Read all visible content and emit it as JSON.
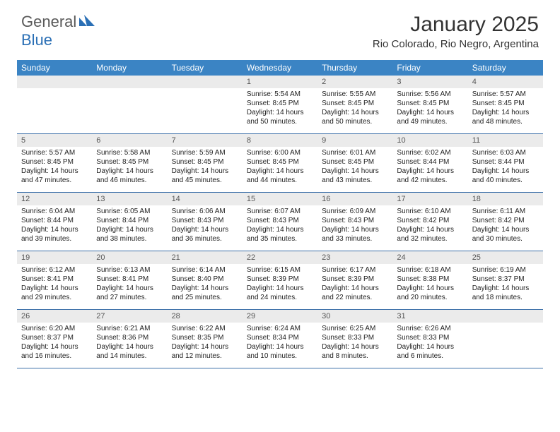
{
  "header": {
    "logo_general": "General",
    "logo_blue": "Blue",
    "month_title": "January 2025",
    "location": "Rio Colorado, Rio Negro, Argentina"
  },
  "colors": {
    "header_bg": "#3b84c4",
    "row_border": "#3b6fa8",
    "daybar_bg": "#ebebeb",
    "logo_blue": "#2a6fb5",
    "text": "#333333"
  },
  "day_names": [
    "Sunday",
    "Monday",
    "Tuesday",
    "Wednesday",
    "Thursday",
    "Friday",
    "Saturday"
  ],
  "weeks": [
    [
      {
        "blank": true
      },
      {
        "blank": true
      },
      {
        "blank": true
      },
      {
        "num": "1",
        "sunrise": "Sunrise: 5:54 AM",
        "sunset": "Sunset: 8:45 PM",
        "day1": "Daylight: 14 hours",
        "day2": "and 50 minutes."
      },
      {
        "num": "2",
        "sunrise": "Sunrise: 5:55 AM",
        "sunset": "Sunset: 8:45 PM",
        "day1": "Daylight: 14 hours",
        "day2": "and 50 minutes."
      },
      {
        "num": "3",
        "sunrise": "Sunrise: 5:56 AM",
        "sunset": "Sunset: 8:45 PM",
        "day1": "Daylight: 14 hours",
        "day2": "and 49 minutes."
      },
      {
        "num": "4",
        "sunrise": "Sunrise: 5:57 AM",
        "sunset": "Sunset: 8:45 PM",
        "day1": "Daylight: 14 hours",
        "day2": "and 48 minutes."
      }
    ],
    [
      {
        "num": "5",
        "sunrise": "Sunrise: 5:57 AM",
        "sunset": "Sunset: 8:45 PM",
        "day1": "Daylight: 14 hours",
        "day2": "and 47 minutes."
      },
      {
        "num": "6",
        "sunrise": "Sunrise: 5:58 AM",
        "sunset": "Sunset: 8:45 PM",
        "day1": "Daylight: 14 hours",
        "day2": "and 46 minutes."
      },
      {
        "num": "7",
        "sunrise": "Sunrise: 5:59 AM",
        "sunset": "Sunset: 8:45 PM",
        "day1": "Daylight: 14 hours",
        "day2": "and 45 minutes."
      },
      {
        "num": "8",
        "sunrise": "Sunrise: 6:00 AM",
        "sunset": "Sunset: 8:45 PM",
        "day1": "Daylight: 14 hours",
        "day2": "and 44 minutes."
      },
      {
        "num": "9",
        "sunrise": "Sunrise: 6:01 AM",
        "sunset": "Sunset: 8:45 PM",
        "day1": "Daylight: 14 hours",
        "day2": "and 43 minutes."
      },
      {
        "num": "10",
        "sunrise": "Sunrise: 6:02 AM",
        "sunset": "Sunset: 8:44 PM",
        "day1": "Daylight: 14 hours",
        "day2": "and 42 minutes."
      },
      {
        "num": "11",
        "sunrise": "Sunrise: 6:03 AM",
        "sunset": "Sunset: 8:44 PM",
        "day1": "Daylight: 14 hours",
        "day2": "and 40 minutes."
      }
    ],
    [
      {
        "num": "12",
        "sunrise": "Sunrise: 6:04 AM",
        "sunset": "Sunset: 8:44 PM",
        "day1": "Daylight: 14 hours",
        "day2": "and 39 minutes."
      },
      {
        "num": "13",
        "sunrise": "Sunrise: 6:05 AM",
        "sunset": "Sunset: 8:44 PM",
        "day1": "Daylight: 14 hours",
        "day2": "and 38 minutes."
      },
      {
        "num": "14",
        "sunrise": "Sunrise: 6:06 AM",
        "sunset": "Sunset: 8:43 PM",
        "day1": "Daylight: 14 hours",
        "day2": "and 36 minutes."
      },
      {
        "num": "15",
        "sunrise": "Sunrise: 6:07 AM",
        "sunset": "Sunset: 8:43 PM",
        "day1": "Daylight: 14 hours",
        "day2": "and 35 minutes."
      },
      {
        "num": "16",
        "sunrise": "Sunrise: 6:09 AM",
        "sunset": "Sunset: 8:43 PM",
        "day1": "Daylight: 14 hours",
        "day2": "and 33 minutes."
      },
      {
        "num": "17",
        "sunrise": "Sunrise: 6:10 AM",
        "sunset": "Sunset: 8:42 PM",
        "day1": "Daylight: 14 hours",
        "day2": "and 32 minutes."
      },
      {
        "num": "18",
        "sunrise": "Sunrise: 6:11 AM",
        "sunset": "Sunset: 8:42 PM",
        "day1": "Daylight: 14 hours",
        "day2": "and 30 minutes."
      }
    ],
    [
      {
        "num": "19",
        "sunrise": "Sunrise: 6:12 AM",
        "sunset": "Sunset: 8:41 PM",
        "day1": "Daylight: 14 hours",
        "day2": "and 29 minutes."
      },
      {
        "num": "20",
        "sunrise": "Sunrise: 6:13 AM",
        "sunset": "Sunset: 8:41 PM",
        "day1": "Daylight: 14 hours",
        "day2": "and 27 minutes."
      },
      {
        "num": "21",
        "sunrise": "Sunrise: 6:14 AM",
        "sunset": "Sunset: 8:40 PM",
        "day1": "Daylight: 14 hours",
        "day2": "and 25 minutes."
      },
      {
        "num": "22",
        "sunrise": "Sunrise: 6:15 AM",
        "sunset": "Sunset: 8:39 PM",
        "day1": "Daylight: 14 hours",
        "day2": "and 24 minutes."
      },
      {
        "num": "23",
        "sunrise": "Sunrise: 6:17 AM",
        "sunset": "Sunset: 8:39 PM",
        "day1": "Daylight: 14 hours",
        "day2": "and 22 minutes."
      },
      {
        "num": "24",
        "sunrise": "Sunrise: 6:18 AM",
        "sunset": "Sunset: 8:38 PM",
        "day1": "Daylight: 14 hours",
        "day2": "and 20 minutes."
      },
      {
        "num": "25",
        "sunrise": "Sunrise: 6:19 AM",
        "sunset": "Sunset: 8:37 PM",
        "day1": "Daylight: 14 hours",
        "day2": "and 18 minutes."
      }
    ],
    [
      {
        "num": "26",
        "sunrise": "Sunrise: 6:20 AM",
        "sunset": "Sunset: 8:37 PM",
        "day1": "Daylight: 14 hours",
        "day2": "and 16 minutes."
      },
      {
        "num": "27",
        "sunrise": "Sunrise: 6:21 AM",
        "sunset": "Sunset: 8:36 PM",
        "day1": "Daylight: 14 hours",
        "day2": "and 14 minutes."
      },
      {
        "num": "28",
        "sunrise": "Sunrise: 6:22 AM",
        "sunset": "Sunset: 8:35 PM",
        "day1": "Daylight: 14 hours",
        "day2": "and 12 minutes."
      },
      {
        "num": "29",
        "sunrise": "Sunrise: 6:24 AM",
        "sunset": "Sunset: 8:34 PM",
        "day1": "Daylight: 14 hours",
        "day2": "and 10 minutes."
      },
      {
        "num": "30",
        "sunrise": "Sunrise: 6:25 AM",
        "sunset": "Sunset: 8:33 PM",
        "day1": "Daylight: 14 hours",
        "day2": "and 8 minutes."
      },
      {
        "num": "31",
        "sunrise": "Sunrise: 6:26 AM",
        "sunset": "Sunset: 8:33 PM",
        "day1": "Daylight: 14 hours",
        "day2": "and 6 minutes."
      },
      {
        "blank": true
      }
    ]
  ]
}
